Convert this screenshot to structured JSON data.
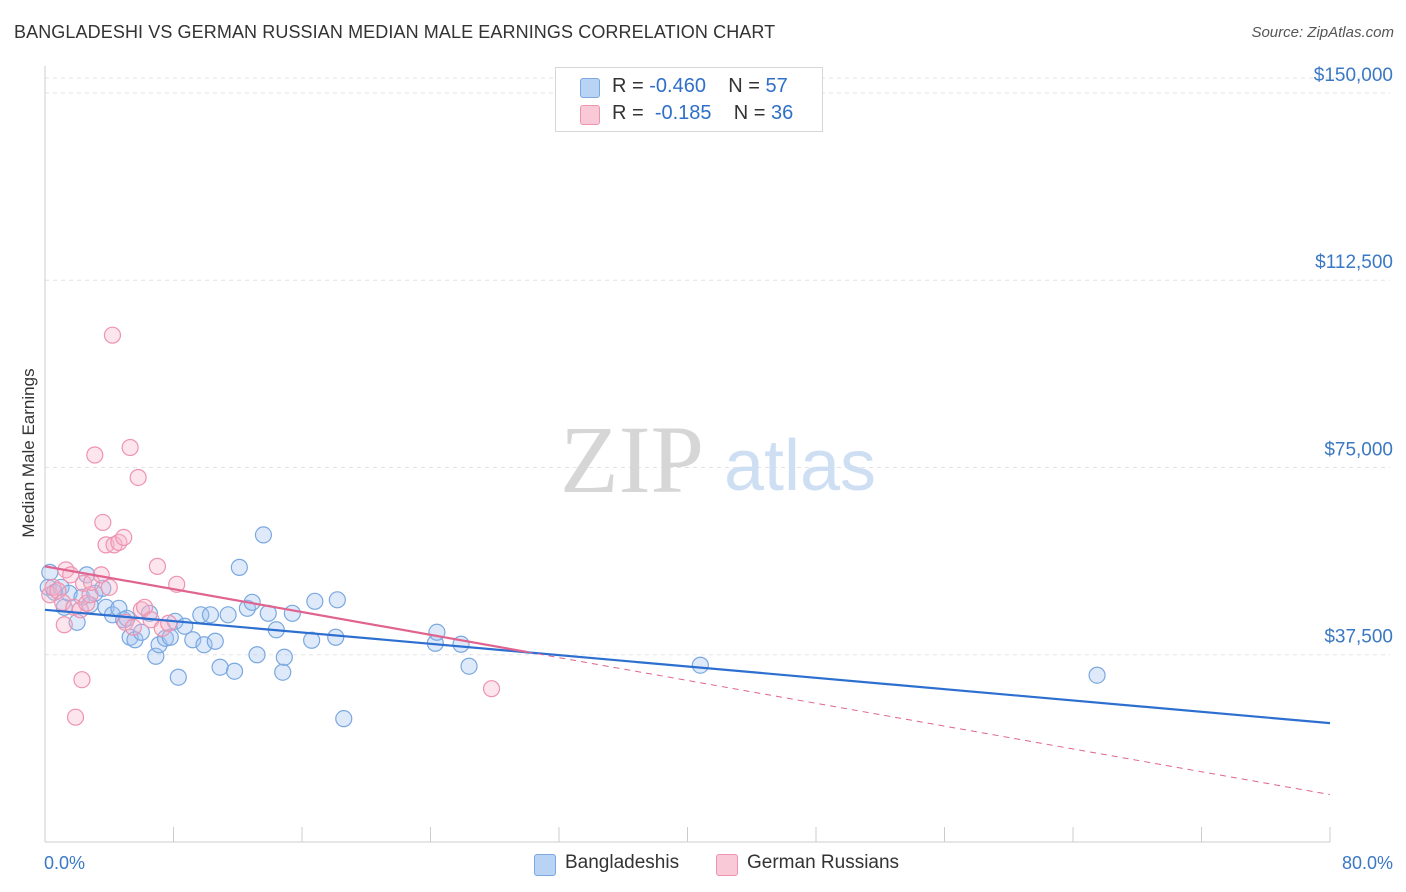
{
  "title": "BANGLADESHI VS GERMAN RUSSIAN MEDIAN MALE EARNINGS CORRELATION CHART",
  "source": "Source: ZipAtlas.com",
  "watermark": {
    "zip": "ZIP",
    "atlas": "atlas"
  },
  "legend": {
    "rows": [
      {
        "r_label": "R =",
        "r_value": "-0.460",
        "n_label": "N =",
        "n_value": "57",
        "color": "#b8d3f3",
        "border": "#7aa8e0"
      },
      {
        "r_label": "R =",
        "r_value": "-0.185",
        "n_label": "N =",
        "n_value": "36",
        "color": "#f9c9d7",
        "border": "#ee93b0"
      }
    ]
  },
  "bottom_legend": [
    {
      "label": "Bangladeshis",
      "color": "#b8d3f3",
      "border": "#7aa8e0"
    },
    {
      "label": "German Russians",
      "color": "#f9c9d7",
      "border": "#ee93b0"
    }
  ],
  "chart_data": {
    "type": "scatter",
    "title": "BANGLADESHI VS GERMAN RUSSIAN MEDIAN MALE EARNINGS CORRELATION CHART",
    "xlabel": "",
    "ylabel": "Median Male Earnings",
    "xlim": [
      0,
      80
    ],
    "ylim": [
      0,
      153000
    ],
    "x_tick_labels": [
      "0.0%",
      "80.0%"
    ],
    "y_ticks": [
      {
        "value": 37500,
        "label": "$37,500"
      },
      {
        "value": 75000,
        "label": "$75,000"
      },
      {
        "value": 112500,
        "label": "$112,500"
      },
      {
        "value": 150000,
        "label": "$150,000"
      }
    ],
    "grid": true,
    "series": [
      {
        "name": "Bangladeshis",
        "color": "#7aa8e0",
        "fill": "rgba(160,196,240,0.35)",
        "line_color": "#2d6fd0",
        "trend": {
          "x0": 0,
          "y0": 46500,
          "x1": 80,
          "y1": 23800,
          "dash_from": null
        },
        "points": [
          [
            0.2,
            51000
          ],
          [
            0.3,
            54000
          ],
          [
            0.6,
            50000
          ],
          [
            1.0,
            51000
          ],
          [
            1.2,
            47000
          ],
          [
            1.5,
            49800
          ],
          [
            2.0,
            44000
          ],
          [
            2.3,
            49000
          ],
          [
            2.6,
            53500
          ],
          [
            2.8,
            47500
          ],
          [
            3.1,
            49800
          ],
          [
            3.6,
            50800
          ],
          [
            3.8,
            47000
          ],
          [
            4.2,
            45500
          ],
          [
            4.6,
            46800
          ],
          [
            4.9,
            44500
          ],
          [
            5.1,
            44800
          ],
          [
            5.3,
            41000
          ],
          [
            5.6,
            40500
          ],
          [
            6.0,
            42000
          ],
          [
            6.5,
            45800
          ],
          [
            6.9,
            37200
          ],
          [
            7.1,
            39500
          ],
          [
            7.5,
            40800
          ],
          [
            7.8,
            41000
          ],
          [
            8.1,
            44200
          ],
          [
            8.3,
            33000
          ],
          [
            8.7,
            43200
          ],
          [
            9.2,
            40500
          ],
          [
            9.7,
            45500
          ],
          [
            9.9,
            39500
          ],
          [
            10.3,
            45500
          ],
          [
            10.6,
            40200
          ],
          [
            10.9,
            35000
          ],
          [
            11.4,
            45500
          ],
          [
            11.8,
            34200
          ],
          [
            12.1,
            55000
          ],
          [
            12.6,
            46800
          ],
          [
            12.9,
            48000
          ],
          [
            13.2,
            37500
          ],
          [
            13.6,
            61500
          ],
          [
            13.9,
            45800
          ],
          [
            14.4,
            42500
          ],
          [
            14.8,
            34000
          ],
          [
            14.9,
            37000
          ],
          [
            15.4,
            45800
          ],
          [
            16.6,
            40400
          ],
          [
            16.8,
            48200
          ],
          [
            18.1,
            41000
          ],
          [
            18.2,
            48500
          ],
          [
            18.6,
            24700
          ],
          [
            24.3,
            39800
          ],
          [
            24.4,
            42000
          ],
          [
            25.9,
            39600
          ],
          [
            26.4,
            35200
          ],
          [
            40.8,
            35400
          ],
          [
            65.5,
            33400
          ]
        ]
      },
      {
        "name": "German Russians",
        "color": "#ee93b0",
        "fill": "rgba(246,181,202,0.35)",
        "line_color": "#e0648f",
        "trend": {
          "x0": 0,
          "y0": 55200,
          "x1": 80,
          "y1": 9500,
          "dash_from": 30
        },
        "points": [
          [
            0.3,
            49500
          ],
          [
            0.5,
            51000
          ],
          [
            0.8,
            50300
          ],
          [
            1.1,
            48000
          ],
          [
            1.2,
            43500
          ],
          [
            1.3,
            54500
          ],
          [
            1.6,
            53500
          ],
          [
            1.8,
            47000
          ],
          [
            1.9,
            25000
          ],
          [
            2.2,
            46500
          ],
          [
            2.3,
            32500
          ],
          [
            2.4,
            51800
          ],
          [
            2.6,
            47800
          ],
          [
            2.8,
            49500
          ],
          [
            2.9,
            52000
          ],
          [
            3.1,
            77500
          ],
          [
            3.5,
            53500
          ],
          [
            3.6,
            64000
          ],
          [
            3.8,
            59500
          ],
          [
            4.0,
            51000
          ],
          [
            4.2,
            101500
          ],
          [
            4.3,
            59500
          ],
          [
            4.6,
            60000
          ],
          [
            4.9,
            61000
          ],
          [
            5.0,
            44000
          ],
          [
            5.3,
            79000
          ],
          [
            5.5,
            43000
          ],
          [
            5.8,
            73000
          ],
          [
            6.0,
            46500
          ],
          [
            6.2,
            47000
          ],
          [
            6.6,
            44500
          ],
          [
            7.0,
            55200
          ],
          [
            7.3,
            42800
          ],
          [
            7.7,
            43800
          ],
          [
            8.2,
            51600
          ],
          [
            27.8,
            30700
          ]
        ]
      }
    ]
  }
}
